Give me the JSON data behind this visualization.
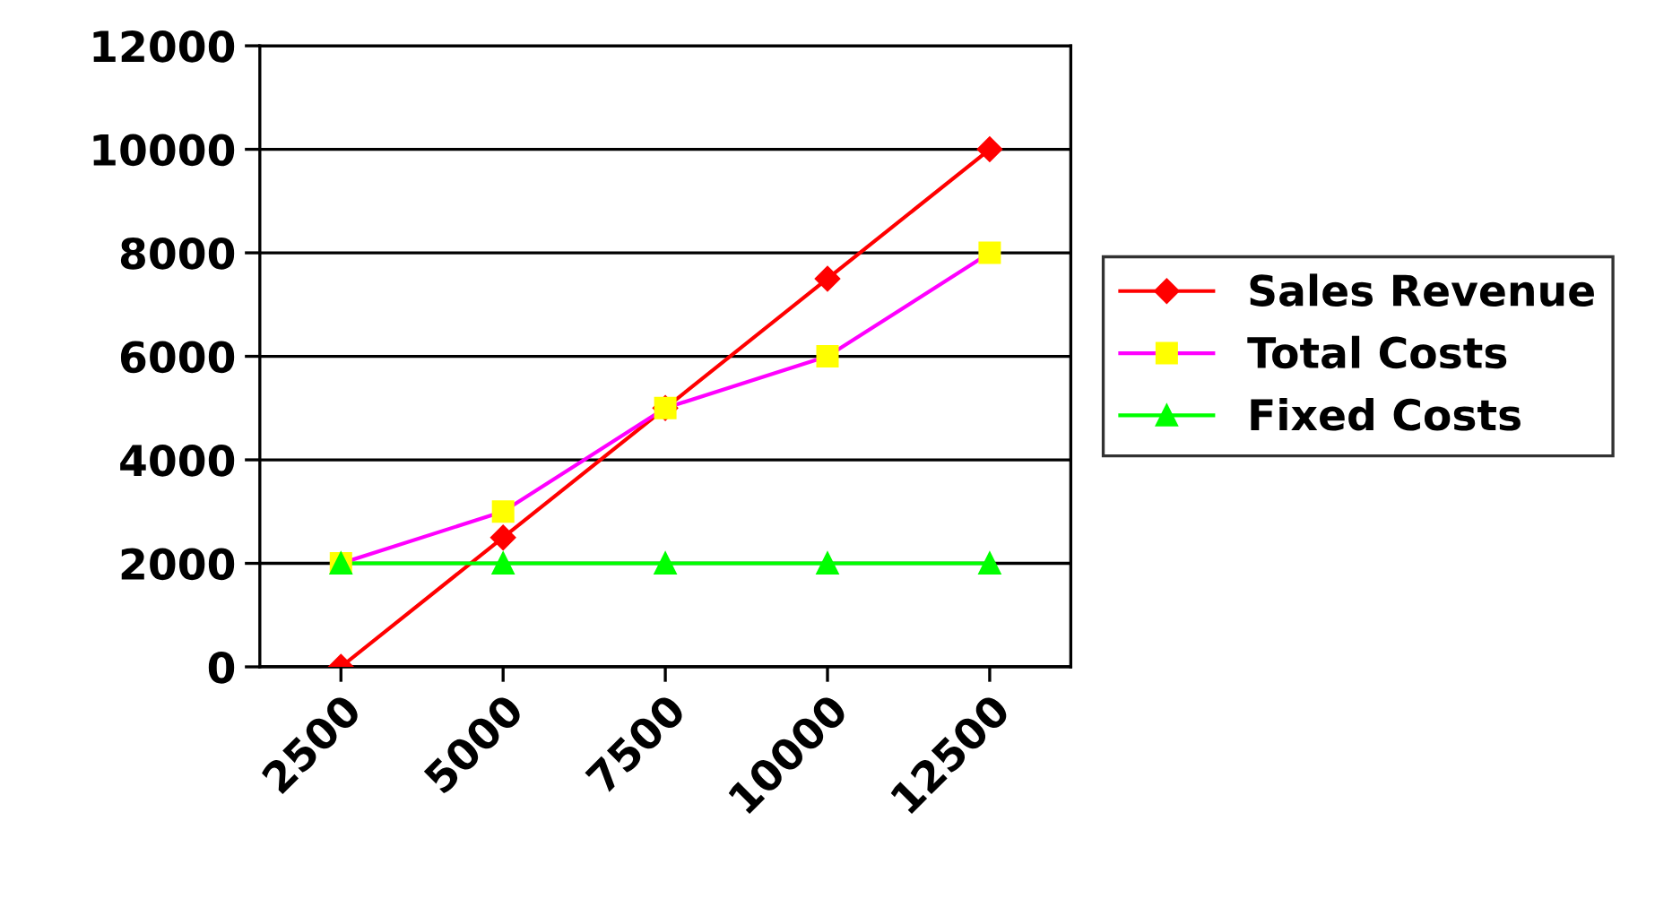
{
  "chart_data": {
    "type": "line",
    "categories": [
      "2500",
      "5000",
      "7500",
      "10000",
      "12500"
    ],
    "series": [
      {
        "name": "Sales Revenue",
        "color": "#ff0000",
        "values": [
          0,
          2500,
          5000,
          7500,
          10000
        ],
        "marker": "diamond"
      },
      {
        "name": "Total Costs",
        "color": "#ff00ff",
        "colors": [
          "#ffff00",
          "#ffff00",
          "#ffff00",
          "#ffff00",
          "#ffff00"
        ],
        "values": [
          2000,
          3000,
          5000,
          6000,
          8000
        ],
        "marker": "square"
      },
      {
        "name": "Fixed Costs",
        "color": "#00ff00",
        "values": [
          2000,
          2000,
          2000,
          2000,
          2000
        ],
        "marker": "triangle"
      }
    ],
    "ylim": [
      0,
      12000
    ],
    "yticks": [
      0,
      2000,
      4000,
      6000,
      8000,
      10000,
      12000
    ],
    "grid": "y",
    "legend": "right"
  }
}
